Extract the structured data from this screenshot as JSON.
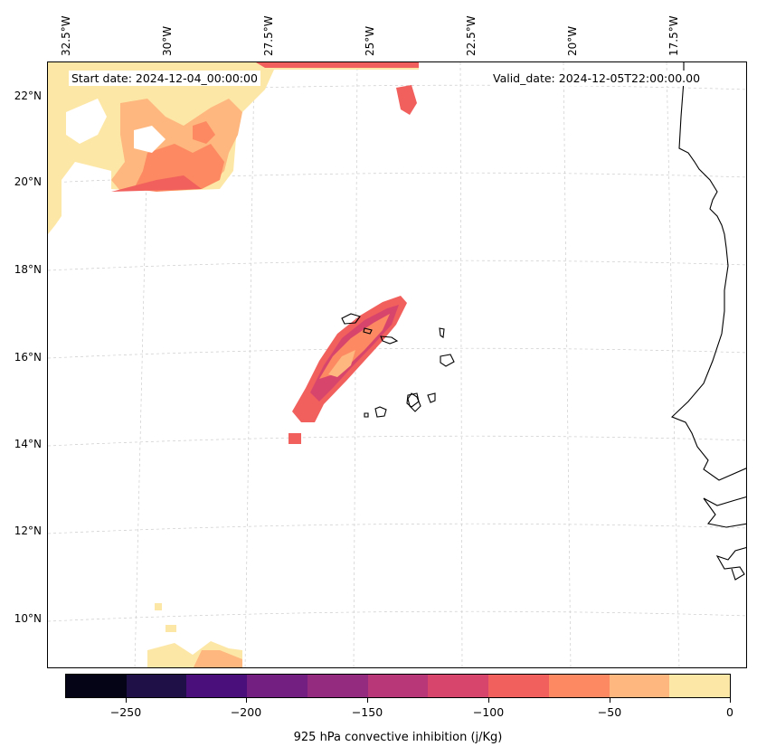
{
  "map": {
    "title_left": "Start date: 2024-12-04_00:00:00",
    "title_right": "Valid_date: 2024-12-05T22:00:00.00",
    "lon_labels": [
      "32.5°W",
      "30°W",
      "27.5°W",
      "25°W",
      "22.5°W",
      "20°W",
      "17.5°W"
    ],
    "lat_labels": [
      "22°N",
      "20°N",
      "18°N",
      "16°N",
      "14°N",
      "12°N",
      "10°N"
    ]
  },
  "colorbar": {
    "title": "925 hPa convective inhibition (j/Kg)",
    "ticks": [
      "−250",
      "−200",
      "−150",
      "−100",
      "−50",
      "0"
    ],
    "tick_values": [
      -250,
      -200,
      -150,
      -100,
      -50,
      0
    ],
    "range": [
      -275,
      0
    ],
    "colors": [
      "#050417",
      "#1f1147",
      "#4a0f7a",
      "#721f81",
      "#942b7f",
      "#b73779",
      "#d8456c",
      "#f1605d",
      "#fc8961",
      "#feb77e",
      "#fde7a7"
    ]
  }
}
